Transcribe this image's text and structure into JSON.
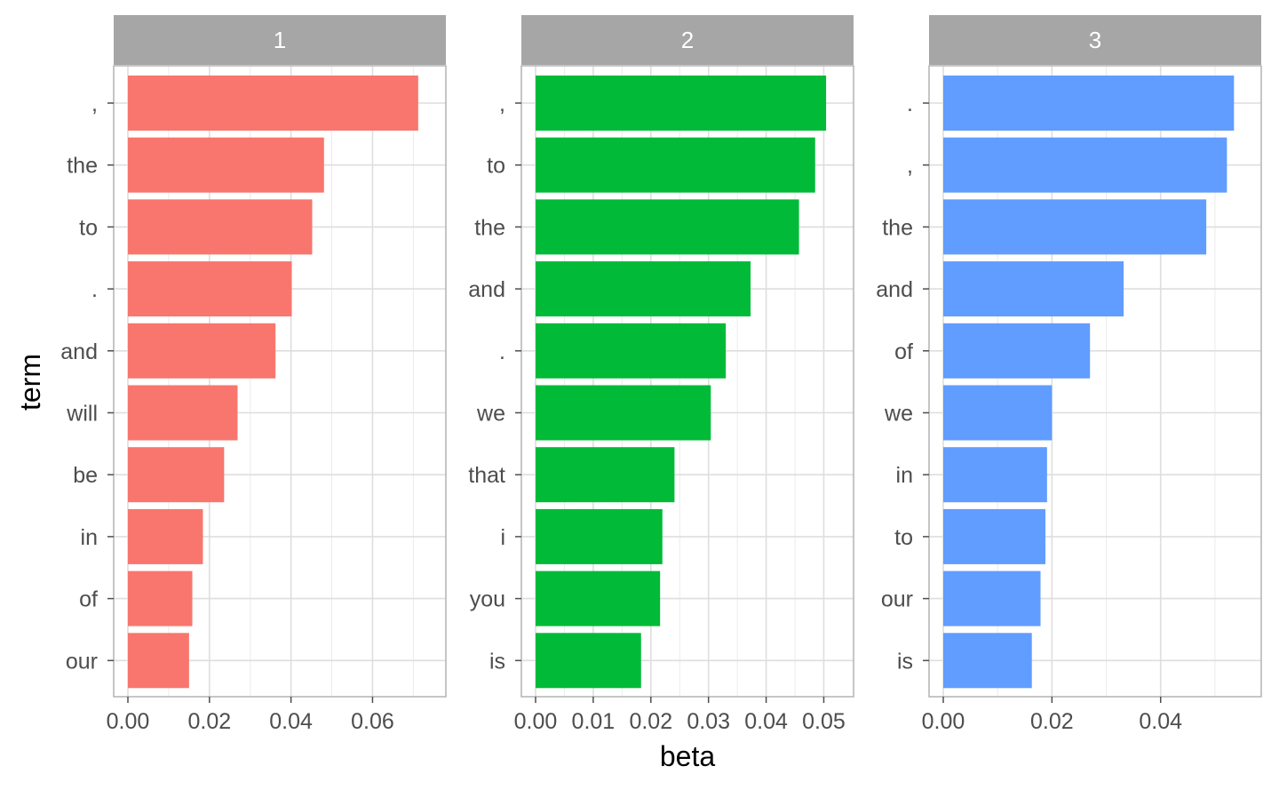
{
  "chart_data": {
    "type": "bar",
    "orientation": "horizontal",
    "xlabel": "beta",
    "ylabel": "term",
    "grid": true,
    "legend": "none",
    "facets": [
      {
        "label": "1",
        "color": "#F8766D",
        "xlim": [
          0,
          0.0745
        ],
        "ticks": [
          0,
          0.02,
          0.04,
          0.06
        ],
        "tick_labels": [
          "0.00",
          "0.02",
          "0.04",
          "0.06"
        ],
        "terms": [
          ",",
          "the",
          "to",
          ".",
          "and",
          "will",
          "be",
          "in",
          "of",
          "our"
        ],
        "values": [
          0.0712,
          0.0481,
          0.0452,
          0.0402,
          0.0362,
          0.0269,
          0.0236,
          0.0184,
          0.0158,
          0.015
        ]
      },
      {
        "label": "2",
        "color": "#00BA38",
        "xlim": [
          0,
          0.0527
        ],
        "ticks": [
          0,
          0.01,
          0.02,
          0.03,
          0.04,
          0.05
        ],
        "tick_labels": [
          "0.00",
          "0.01",
          "0.02",
          "0.03",
          "0.04",
          "0.05"
        ],
        "terms": [
          ",",
          "to",
          "the",
          "and",
          ".",
          "we",
          "that",
          "i",
          "you",
          "is"
        ],
        "values": [
          0.0504,
          0.0485,
          0.0457,
          0.0373,
          0.033,
          0.0304,
          0.0241,
          0.022,
          0.0216,
          0.0183
        ]
      },
      {
        "label": "3",
        "color": "#619CFF",
        "xlim": [
          0,
          0.0559
        ],
        "ticks": [
          0,
          0.02,
          0.04
        ],
        "tick_labels": [
          "0.00",
          "0.02",
          "0.04"
        ],
        "terms": [
          ".",
          ",",
          "the",
          "and",
          "of",
          "we",
          "in",
          "to",
          "our",
          "is"
        ],
        "values": [
          0.0535,
          0.0522,
          0.0484,
          0.0332,
          0.027,
          0.02,
          0.0191,
          0.0188,
          0.0179,
          0.0163
        ]
      }
    ]
  }
}
